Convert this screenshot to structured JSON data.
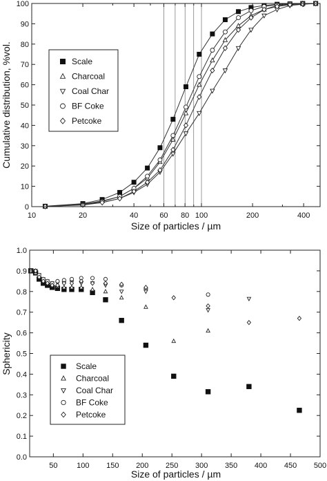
{
  "chart_data": [
    {
      "type": "line",
      "xlabel": "Size of particles / µm",
      "ylabel": "Cumulative distribution, %vol.",
      "xscale": "log",
      "xlim": [
        10,
        500
      ],
      "ylim": [
        0,
        100
      ],
      "x_ticks": [
        10,
        20,
        40,
        60,
        80,
        100,
        200,
        400
      ],
      "y_ticks": [
        0,
        10,
        20,
        30,
        40,
        50,
        60,
        70,
        80,
        90,
        100
      ],
      "grid_x": [
        60,
        70,
        80,
        90,
        100
      ],
      "legend_position": "left-middle",
      "x": [
        12,
        20,
        26,
        33,
        40,
        48,
        57,
        68,
        81,
        97,
        116,
        138,
        165,
        196,
        234,
        279,
        332,
        395,
        471
      ],
      "series": [
        {
          "name": "Scale",
          "marker": "filled-square",
          "values": [
            0.2,
            1.5,
            3.5,
            7,
            12,
            19,
            29,
            43,
            59,
            75,
            85,
            92,
            96,
            98,
            99,
            99.6,
            99.8,
            100,
            100
          ]
        },
        {
          "name": "Charcoal",
          "marker": "triangle-up",
          "values": [
            0.1,
            1.2,
            2.8,
            5,
            9,
            14,
            22,
            33,
            46,
            60,
            72,
            82,
            89,
            94,
            97,
            99,
            99.5,
            100,
            100
          ]
        },
        {
          "name": "Coal Char",
          "marker": "triangle-down",
          "values": [
            0.1,
            1,
            2,
            4,
            7,
            11,
            17,
            26,
            36,
            46,
            57,
            67,
            78,
            87,
            94,
            97,
            99,
            99.6,
            100
          ]
        },
        {
          "name": "BF Coke",
          "marker": "circle",
          "values": [
            0.1,
            1,
            2.5,
            5,
            9,
            15,
            23,
            35,
            49,
            64,
            77,
            86,
            93,
            96.5,
            98.5,
            99.4,
            99.8,
            100,
            100
          ]
        },
        {
          "name": "Petcoke",
          "marker": "diamond",
          "values": [
            0.1,
            0.8,
            2,
            4,
            7.5,
            12,
            18,
            28,
            40,
            54,
            67,
            78,
            87,
            93,
            97,
            98.5,
            99.4,
            99.8,
            100
          ]
        }
      ]
    },
    {
      "type": "scatter",
      "xlabel": "Size of particles / µm",
      "ylabel": "Sphericity",
      "xlim": [
        10,
        500
      ],
      "ylim": [
        0.0,
        1.0
      ],
      "x_ticks": [
        50,
        100,
        150,
        200,
        250,
        300,
        350,
        400,
        450,
        500
      ],
      "y_ticks": [
        0.0,
        0.1,
        0.2,
        0.3,
        0.4,
        0.5,
        0.6,
        0.7,
        0.8,
        0.9,
        1.0
      ],
      "legend_position": "bottom-left",
      "series": [
        {
          "name": "Scale",
          "marker": "filled-square",
          "x": [
            12,
            20,
            26,
            33,
            40,
            48,
            57,
            68,
            81,
            97,
            116,
            138,
            165,
            206,
            253,
            311,
            380,
            465
          ],
          "y": [
            0.9,
            0.89,
            0.86,
            0.84,
            0.83,
            0.82,
            0.815,
            0.81,
            0.81,
            0.81,
            0.795,
            0.76,
            0.66,
            0.54,
            0.39,
            0.315,
            0.34,
            0.225
          ]
        },
        {
          "name": "Charcoal",
          "marker": "triangle-up",
          "x": [
            12,
            20,
            26,
            33,
            40,
            48,
            57,
            68,
            81,
            97,
            116,
            138,
            165,
            206,
            253,
            311
          ],
          "y": [
            0.9,
            0.89,
            0.87,
            0.85,
            0.84,
            0.83,
            0.825,
            0.82,
            0.82,
            0.82,
            0.81,
            0.8,
            0.77,
            0.725,
            0.56,
            0.61
          ]
        },
        {
          "name": "Coal Char",
          "marker": "triangle-down",
          "x": [
            12,
            20,
            26,
            33,
            40,
            48,
            57,
            68,
            81,
            97,
            116,
            138,
            165,
            206,
            311,
            380
          ],
          "y": [
            0.9,
            0.9,
            0.88,
            0.86,
            0.85,
            0.84,
            0.84,
            0.84,
            0.845,
            0.84,
            0.84,
            0.83,
            0.8,
            0.8,
            0.71,
            0.765
          ]
        },
        {
          "name": "BF Coke",
          "marker": "circle",
          "x": [
            12,
            20,
            26,
            33,
            40,
            48,
            57,
            68,
            81,
            97,
            116,
            138,
            165,
            206,
            311
          ],
          "y": [
            0.9,
            0.9,
            0.88,
            0.86,
            0.85,
            0.84,
            0.85,
            0.855,
            0.86,
            0.865,
            0.865,
            0.86,
            0.83,
            0.815,
            0.785
          ]
        },
        {
          "name": "Petcoke",
          "marker": "diamond",
          "x": [
            12,
            20,
            26,
            33,
            40,
            48,
            57,
            68,
            81,
            97,
            116,
            138,
            165,
            206,
            253,
            311,
            380,
            465
          ],
          "y": [
            0.9,
            0.9,
            0.87,
            0.85,
            0.84,
            0.83,
            0.83,
            0.84,
            0.84,
            0.85,
            0.84,
            0.84,
            0.835,
            0.82,
            0.77,
            0.73,
            0.65,
            0.67
          ]
        }
      ]
    }
  ]
}
